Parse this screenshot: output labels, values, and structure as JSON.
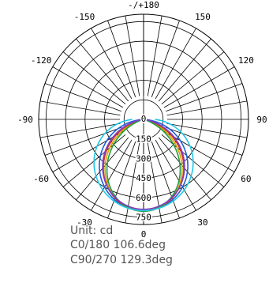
{
  "chart_data": {
    "type": "polar",
    "title": "",
    "angle_labels": [
      {
        "angle": 180,
        "text": "-/+180"
      },
      {
        "angle": 150,
        "text": "150"
      },
      {
        "angle": -150,
        "text": "-150"
      },
      {
        "angle": 120,
        "text": "120"
      },
      {
        "angle": -120,
        "text": "-120"
      },
      {
        "angle": 90,
        "text": "90"
      },
      {
        "angle": -90,
        "text": "-90"
      },
      {
        "angle": 60,
        "text": "60"
      },
      {
        "angle": -60,
        "text": "-60"
      },
      {
        "angle": 30,
        "text": "30"
      },
      {
        "angle": -30,
        "text": "-30"
      },
      {
        "angle": 0,
        "text": "0"
      }
    ],
    "radial_ticks": [
      {
        "value": 0,
        "text": "0"
      },
      {
        "value": 150,
        "text": "150"
      },
      {
        "value": 300,
        "text": "300"
      },
      {
        "value": 450,
        "text": "450"
      },
      {
        "value": 600,
        "text": "600"
      },
      {
        "value": 750,
        "text": "750"
      }
    ],
    "radial_max": 750,
    "angle_step_deg": 10,
    "grid": true,
    "series": [
      {
        "color": "#1f5fd8",
        "peak_cd": 700,
        "half_width_deg": 56,
        "shape": 1.0
      },
      {
        "color": "#e0a000",
        "peak_cd": 705,
        "half_width_deg": 50,
        "shape": 1.15
      },
      {
        "color": "#d03030",
        "peak_cd": 700,
        "half_width_deg": 52,
        "shape": 1.1
      },
      {
        "color": "#20a040",
        "peak_cd": 705,
        "half_width_deg": 48,
        "shape": 1.2
      },
      {
        "color": "#8040c0",
        "peak_cd": 690,
        "half_width_deg": 53,
        "shape": 1.05
      },
      {
        "color": "#20c8e8",
        "peak_cd": 700,
        "half_width_deg": 62,
        "shape": 0.9
      }
    ]
  },
  "info": {
    "unit": "Unit: cd",
    "c0": "C0/180 106.6deg",
    "c90": "C90/270 129.3deg"
  }
}
